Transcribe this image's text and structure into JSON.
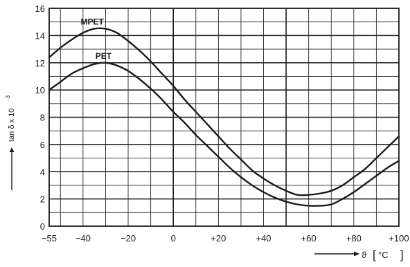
{
  "chart_data": {
    "type": "line",
    "title": "",
    "ylabel": "tan δ x 10",
    "ylabel_exponent": "-3",
    "xlabel_symbol": "ϑ",
    "xlabel_unit_open": "[",
    "xlabel_unit": "°C",
    "xlabel_unit_close": "]",
    "xlim": [
      -55,
      100
    ],
    "ylim": [
      0,
      16
    ],
    "grid": true,
    "x_ticks": [
      -55,
      -40,
      -20,
      0,
      20,
      40,
      60,
      80,
      100
    ],
    "x_tick_labels": [
      "−55",
      "−40",
      "−20",
      "0",
      "+20",
      "+40",
      "+60",
      "+80",
      "+100"
    ],
    "y_ticks": [
      0,
      2,
      4,
      6,
      8,
      10,
      12,
      14,
      16
    ],
    "y_tick_labels": [
      "0",
      "2",
      "4",
      "6",
      "8",
      "10",
      "12",
      "14",
      "16"
    ],
    "series": [
      {
        "name": "MPET",
        "x": [
          -55,
          -50,
          -45,
          -40,
          -35,
          -30,
          -25,
          -20,
          -15,
          -10,
          -5,
          0,
          5,
          10,
          15,
          20,
          25,
          30,
          35,
          40,
          45,
          50,
          55,
          60,
          65,
          70,
          75,
          80,
          85,
          90,
          95,
          100
        ],
        "y": [
          12.4,
          13.1,
          13.7,
          14.2,
          14.5,
          14.5,
          14.2,
          13.6,
          12.9,
          12.1,
          11.2,
          10.3,
          9.3,
          8.4,
          7.5,
          6.6,
          5.7,
          4.9,
          4.1,
          3.5,
          3.0,
          2.6,
          2.3,
          2.3,
          2.4,
          2.6,
          3.0,
          3.6,
          4.2,
          5.0,
          5.8,
          6.6
        ]
      },
      {
        "name": "PET",
        "x": [
          -55,
          -50,
          -45,
          -40,
          -35,
          -30,
          -25,
          -20,
          -15,
          -10,
          -5,
          0,
          5,
          10,
          15,
          20,
          25,
          30,
          35,
          40,
          45,
          50,
          55,
          60,
          65,
          70,
          75,
          80,
          85,
          90,
          95,
          100
        ],
        "y": [
          10.0,
          10.6,
          11.2,
          11.6,
          11.9,
          12.0,
          11.8,
          11.4,
          10.8,
          10.1,
          9.3,
          8.4,
          7.6,
          6.7,
          5.9,
          5.1,
          4.3,
          3.6,
          3.0,
          2.5,
          2.1,
          1.8,
          1.6,
          1.5,
          1.5,
          1.6,
          2.0,
          2.5,
          3.1,
          3.7,
          4.3,
          4.8
        ]
      }
    ]
  }
}
